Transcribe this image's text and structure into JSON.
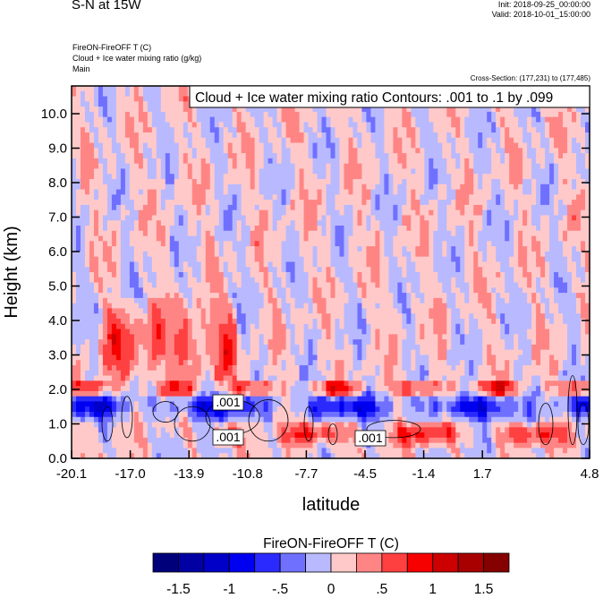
{
  "header": {
    "title": "S-N at 15W",
    "init": "Init: 2018-09-25_00:00:00",
    "valid": "Valid: 2018-10-01_15:00:00",
    "subtitles": [
      "FireON-FireOFF T   (C)",
      "Cloud + Ice water mixing ratio   (g/kg)",
      "Main"
    ],
    "cross_section": "Cross-Section: (177,231) to (177,485)"
  },
  "chart_data": {
    "type": "heatmap",
    "title": "Cloud + Ice water mixing ratio Contours: .001 to .1 by .099",
    "xlabel": "latitude",
    "ylabel": "Height (km)",
    "xticks": [
      "-20.1",
      "-17.0",
      "-13.9",
      "-10.8",
      "-7.7",
      "-4.5",
      "-1.4",
      "1.7",
      "4.8"
    ],
    "yticks": [
      "0.0",
      "1.0",
      "2.0",
      "3.0",
      "4.0",
      "5.0",
      "6.0",
      "7.0",
      "8.0",
      "9.0",
      "10.0"
    ],
    "xlim": [
      -20.1,
      4.8
    ],
    "ylim": [
      0,
      10.8
    ],
    "contour_labels": [
      ".001",
      ".001",
      ".001"
    ],
    "colorbar": {
      "title": "FireON-FireOFF T  (C)",
      "levels_step": 0.25,
      "range": [
        -1.75,
        1.75
      ],
      "labels": [
        "-1.5",
        "-1",
        "-.5",
        "0",
        ".5",
        "1",
        "1.5"
      ],
      "colors": [
        "#00007a",
        "#0000a3",
        "#0000c8",
        "#0000f0",
        "#2a2aff",
        "#7070ff",
        "#b9b9ff",
        "#ffc9c9",
        "#ff8585",
        "#ff4040",
        "#f60000",
        "#cc0000",
        "#a80000",
        "#850000"
      ]
    }
  }
}
